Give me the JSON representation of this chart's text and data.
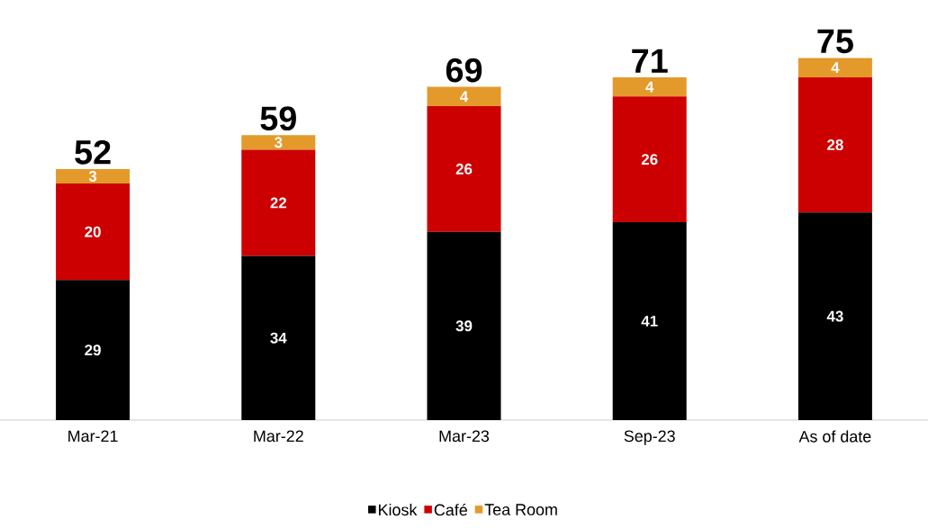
{
  "chart_data": {
    "type": "bar",
    "stacked": true,
    "categories": [
      "Mar-21",
      "Mar-22",
      "Mar-23",
      "Sep-23",
      "As of date"
    ],
    "series": [
      {
        "name": "Kiosk",
        "color": "#000000",
        "values": [
          29,
          34,
          39,
          41,
          43
        ]
      },
      {
        "name": "Café",
        "color": "#cc0000",
        "values": [
          20,
          22,
          26,
          26,
          28
        ]
      },
      {
        "name": "Tea Room",
        "color": "#e39a2b",
        "values": [
          3,
          3,
          4,
          4,
          4
        ]
      }
    ],
    "totals": [
      "52",
      "59",
      "69",
      "71",
      "75"
    ],
    "data_labels": true,
    "legend": "bottom"
  }
}
